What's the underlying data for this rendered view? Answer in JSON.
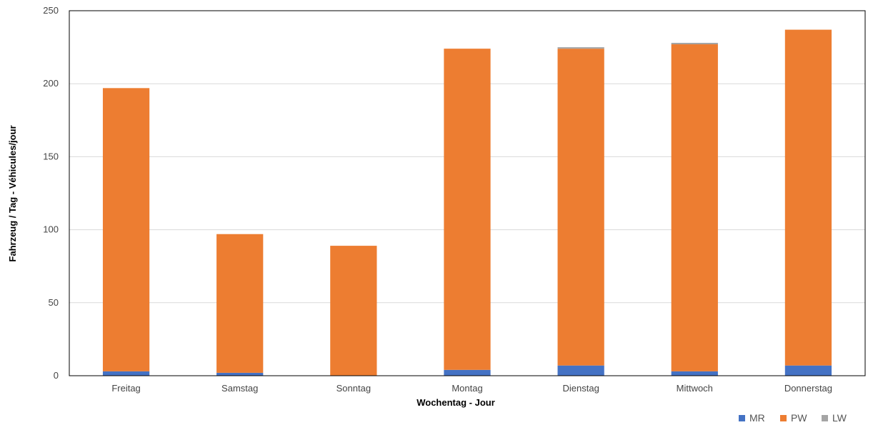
{
  "chart_data": {
    "type": "bar",
    "stacked": true,
    "title": "",
    "xlabel": "Wochentag - Jour",
    "ylabel": "Fahrzeug / Tag - Véhicules/jour",
    "ylim": [
      0,
      250
    ],
    "yticks": [
      0,
      50,
      100,
      150,
      200,
      250
    ],
    "grid": true,
    "legend_position": "bottom-right",
    "categories": [
      "Freitag",
      "Samstag",
      "Sonntag",
      "Montag",
      "Dienstag",
      "Mittwoch",
      "Donnerstag"
    ],
    "series": [
      {
        "name": "MR",
        "color": "#4472C4",
        "values": [
          3,
          2,
          0,
          4,
          7,
          3,
          7
        ]
      },
      {
        "name": "PW",
        "color": "#ED7D31",
        "values": [
          194,
          95,
          89,
          220,
          217,
          224,
          230
        ]
      },
      {
        "name": "LW",
        "color": "#A5A5A5",
        "values": [
          0,
          0,
          0,
          0,
          1,
          1,
          0
        ]
      }
    ]
  }
}
